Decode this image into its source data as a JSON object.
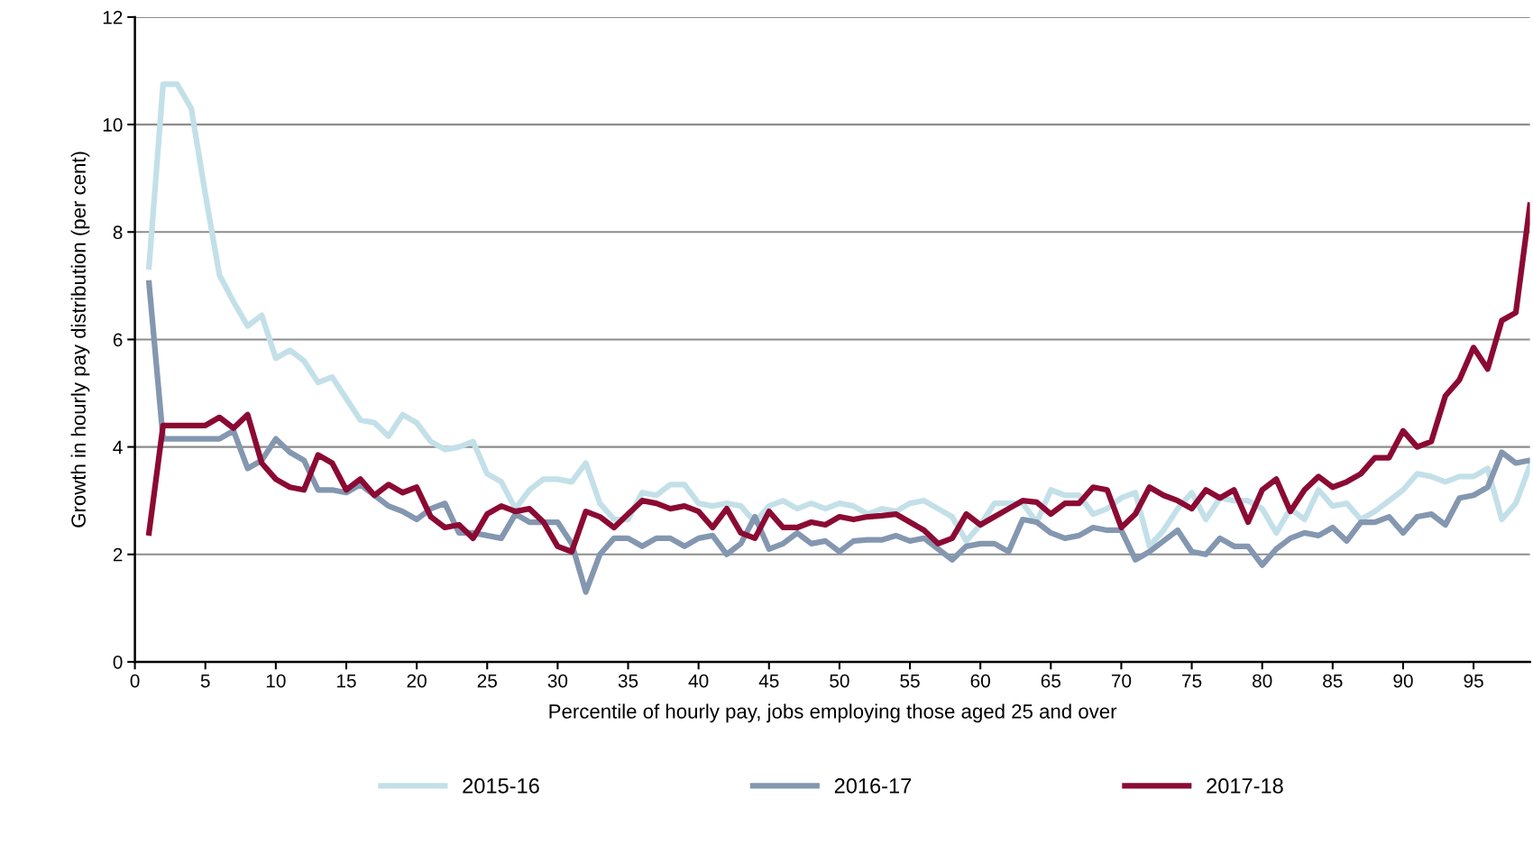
{
  "chart_data": {
    "type": "line",
    "xlabel": "Percentile of hourly pay, jobs employing those aged 25 and over",
    "ylabel": "Growth in hourly pay distribution (per cent)",
    "x": [
      1,
      2,
      3,
      4,
      5,
      6,
      7,
      8,
      9,
      10,
      11,
      12,
      13,
      14,
      15,
      16,
      17,
      18,
      19,
      20,
      21,
      22,
      23,
      24,
      25,
      26,
      27,
      28,
      29,
      30,
      31,
      32,
      33,
      34,
      35,
      36,
      37,
      38,
      39,
      40,
      41,
      42,
      43,
      44,
      45,
      46,
      47,
      48,
      49,
      50,
      51,
      52,
      53,
      54,
      55,
      56,
      57,
      58,
      59,
      60,
      61,
      62,
      63,
      64,
      65,
      66,
      67,
      68,
      69,
      70,
      71,
      72,
      73,
      74,
      75,
      76,
      77,
      78,
      79,
      80,
      81,
      82,
      83,
      84,
      85,
      86,
      87,
      88,
      89,
      90,
      91,
      92,
      93,
      94,
      95,
      96,
      97,
      98,
      99
    ],
    "series": [
      {
        "name": "2015-16",
        "color": "#c3e0e9",
        "values": [
          7.35,
          10.75,
          10.75,
          10.3,
          8.7,
          7.2,
          6.7,
          6.25,
          6.45,
          5.65,
          5.8,
          5.6,
          5.2,
          5.3,
          4.9,
          4.5,
          4.45,
          4.2,
          4.6,
          4.45,
          4.1,
          3.95,
          4.0,
          4.1,
          3.5,
          3.35,
          2.85,
          3.2,
          3.4,
          3.4,
          3.35,
          3.7,
          2.95,
          2.65,
          2.65,
          3.15,
          3.1,
          3.3,
          3.3,
          2.95,
          2.9,
          2.95,
          2.9,
          2.6,
          2.9,
          3.0,
          2.85,
          2.95,
          2.85,
          2.95,
          2.9,
          2.75,
          2.85,
          2.8,
          2.95,
          3.0,
          2.85,
          2.7,
          2.25,
          2.55,
          2.95,
          2.95,
          2.95,
          2.6,
          3.2,
          3.1,
          3.1,
          2.75,
          2.85,
          3.05,
          3.15,
          2.15,
          2.45,
          2.85,
          3.15,
          2.65,
          3.05,
          3.0,
          3.0,
          2.85,
          2.4,
          2.85,
          2.65,
          3.2,
          2.9,
          2.95,
          2.65,
          2.8,
          3.0,
          3.2,
          3.5,
          3.45,
          3.35,
          3.45,
          3.45,
          3.6,
          2.65,
          2.95,
          3.65
        ]
      },
      {
        "name": "2016-17",
        "color": "#8497b0",
        "values": [
          7.05,
          4.15,
          4.15,
          4.15,
          4.15,
          4.15,
          4.3,
          3.6,
          3.75,
          4.15,
          3.9,
          3.75,
          3.2,
          3.2,
          3.15,
          3.3,
          3.1,
          2.9,
          2.8,
          2.65,
          2.85,
          2.95,
          2.4,
          2.4,
          2.35,
          2.3,
          2.75,
          2.6,
          2.6,
          2.6,
          2.2,
          1.3,
          2.0,
          2.3,
          2.3,
          2.15,
          2.3,
          2.3,
          2.15,
          2.3,
          2.35,
          2.0,
          2.2,
          2.7,
          2.1,
          2.2,
          2.4,
          2.2,
          2.25,
          2.05,
          2.25,
          2.27,
          2.27,
          2.35,
          2.25,
          2.3,
          2.1,
          1.9,
          2.15,
          2.2,
          2.2,
          2.05,
          2.65,
          2.6,
          2.4,
          2.3,
          2.35,
          2.5,
          2.45,
          2.45,
          1.9,
          2.05,
          2.25,
          2.45,
          2.05,
          2.0,
          2.3,
          2.15,
          2.15,
          1.8,
          2.1,
          2.3,
          2.4,
          2.35,
          2.5,
          2.25,
          2.6,
          2.6,
          2.7,
          2.4,
          2.7,
          2.75,
          2.55,
          3.05,
          3.1,
          3.25,
          3.9,
          3.7,
          3.75
        ]
      },
      {
        "name": "2017-18",
        "color": "#8b0a33",
        "values": [
          2.4,
          4.4,
          4.4,
          4.4,
          4.4,
          4.55,
          4.35,
          4.6,
          3.7,
          3.4,
          3.25,
          3.2,
          3.85,
          3.7,
          3.2,
          3.4,
          3.1,
          3.3,
          3.15,
          3.25,
          2.7,
          2.5,
          2.55,
          2.3,
          2.75,
          2.9,
          2.8,
          2.85,
          2.6,
          2.15,
          2.05,
          2.8,
          2.7,
          2.5,
          2.75,
          3.0,
          2.95,
          2.85,
          2.9,
          2.8,
          2.5,
          2.85,
          2.4,
          2.3,
          2.8,
          2.5,
          2.5,
          2.6,
          2.55,
          2.7,
          2.65,
          2.7,
          2.72,
          2.75,
          2.6,
          2.45,
          2.2,
          2.3,
          2.75,
          2.55,
          2.7,
          2.85,
          3.0,
          2.97,
          2.75,
          2.95,
          2.95,
          3.25,
          3.2,
          2.5,
          2.75,
          3.25,
          3.1,
          3.0,
          2.85,
          3.2,
          3.05,
          3.2,
          2.6,
          3.2,
          3.4,
          2.8,
          3.2,
          3.45,
          3.25,
          3.35,
          3.5,
          3.8,
          3.8,
          4.3,
          4.0,
          4.1,
          4.95,
          5.25,
          5.85,
          5.45,
          6.35,
          6.5,
          8.5
        ]
      }
    ],
    "xlim": [
      0,
      99
    ],
    "xticks": [
      0,
      5,
      10,
      15,
      20,
      25,
      30,
      35,
      40,
      45,
      50,
      55,
      60,
      65,
      70,
      75,
      80,
      85,
      90,
      95
    ],
    "ylim": [
      0,
      12
    ],
    "yticks": [
      0,
      2,
      4,
      6,
      8,
      10,
      12
    ],
    "grid": "y",
    "legend": "bottom",
    "marker": "none",
    "line_style": "solid"
  }
}
